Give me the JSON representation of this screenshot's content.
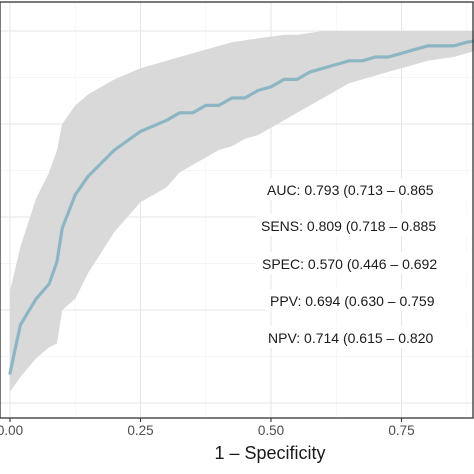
{
  "chart_data": {
    "type": "line",
    "title": "",
    "xlabel": "1 – Specificity",
    "ylabel": "",
    "xlim": [
      0,
      0.9
    ],
    "ylim": [
      0,
      1.02
    ],
    "x_ticks": [
      {
        "value": 0.0,
        "label": "0.00"
      },
      {
        "value": 0.25,
        "label": "0.25"
      },
      {
        "value": 0.5,
        "label": "0.50"
      },
      {
        "value": 0.75,
        "label": "0.75"
      }
    ],
    "series": [
      {
        "color": "#8db6c4",
        "band_color": "#d9d9d9",
        "x": [
          0.0,
          0.02,
          0.05,
          0.075,
          0.09,
          0.1,
          0.125,
          0.15,
          0.2,
          0.25,
          0.3,
          0.325,
          0.35,
          0.375,
          0.4,
          0.425,
          0.45,
          0.475,
          0.5,
          0.525,
          0.55,
          0.575,
          0.6,
          0.625,
          0.65,
          0.675,
          0.7,
          0.725,
          0.75,
          0.775,
          0.8,
          0.85,
          0.875,
          0.9
        ],
        "y": [
          0.08,
          0.21,
          0.28,
          0.32,
          0.38,
          0.47,
          0.56,
          0.61,
          0.68,
          0.73,
          0.76,
          0.78,
          0.78,
          0.8,
          0.8,
          0.82,
          0.82,
          0.84,
          0.85,
          0.87,
          0.87,
          0.89,
          0.9,
          0.91,
          0.92,
          0.92,
          0.93,
          0.93,
          0.94,
          0.95,
          0.96,
          0.96,
          0.97,
          0.975
        ],
        "lower": [
          0.03,
          0.07,
          0.12,
          0.15,
          0.16,
          0.25,
          0.28,
          0.35,
          0.46,
          0.54,
          0.58,
          0.62,
          0.64,
          0.66,
          0.68,
          0.69,
          0.71,
          0.72,
          0.74,
          0.76,
          0.78,
          0.8,
          0.82,
          0.84,
          0.86,
          0.87,
          0.88,
          0.89,
          0.9,
          0.91,
          0.92,
          0.93,
          0.94,
          0.95
        ],
        "upper": [
          0.3,
          0.42,
          0.55,
          0.62,
          0.68,
          0.75,
          0.8,
          0.83,
          0.87,
          0.9,
          0.92,
          0.93,
          0.94,
          0.95,
          0.96,
          0.97,
          0.975,
          0.98,
          0.985,
          0.99,
          0.99,
          0.995,
          1.0,
          1.0,
          1.0,
          1.0,
          1.0,
          1.0,
          1.0,
          1.0,
          1.0,
          1.0,
          1.0,
          1.0
        ]
      }
    ],
    "annotations": [
      "AUC: 0.793 (0.713 – 0.865",
      "SENS: 0.809 (0.718 – 0.885",
      "SPEC: 0.570 (0.446 – 0.692",
      "PPV: 0.694 (0.630 – 0.759",
      "NPV: 0.714 (0.615 – 0.820"
    ],
    "grid": true
  }
}
